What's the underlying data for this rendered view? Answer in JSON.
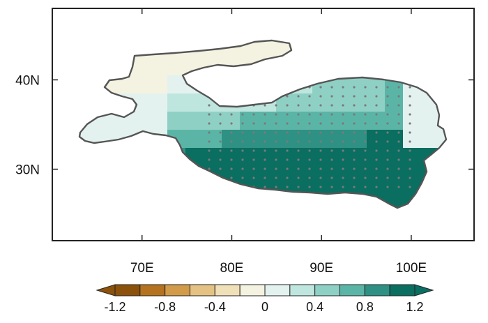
{
  "map": {
    "projection": "cylindrical equidistant",
    "lon_range_deg": [
      60,
      107
    ],
    "lat_range_deg": [
      22,
      48
    ],
    "x_ticks": [
      {
        "value": 70,
        "label": "70E"
      },
      {
        "value": 80,
        "label": "80E"
      },
      {
        "value": 90,
        "label": "90E"
      },
      {
        "value": 100,
        "label": "100E"
      }
    ],
    "y_ticks": [
      {
        "value": 30,
        "label": "30N"
      },
      {
        "value": 40,
        "label": "40N"
      }
    ],
    "field": "gridded values shaded on a ~2 degree grid over the Tibetan Plateau region",
    "boundary": "outline of the Tibetan Plateau / High Mountain Asia region",
    "stippling": "grey dots marking significant grid cells over the central and southern plateau"
  },
  "colorbar": {
    "type": "diverging brown–teal, extended both ends",
    "tick_labels": [
      "-1.2",
      "-0.8",
      "-0.4",
      "0",
      "0.4",
      "0.8",
      "1.2"
    ],
    "colors": [
      "#8c510a",
      "#b5731f",
      "#d19b4a",
      "#e4c283",
      "#f0e0b8",
      "#f4f2e0",
      "#e3f2ef",
      "#bfe6de",
      "#8fd0c4",
      "#5bb5a7",
      "#2e9184",
      "#0a6e60"
    ],
    "low_extend_color": "#8c510a",
    "high_extend_color": "#0a6e60"
  }
}
